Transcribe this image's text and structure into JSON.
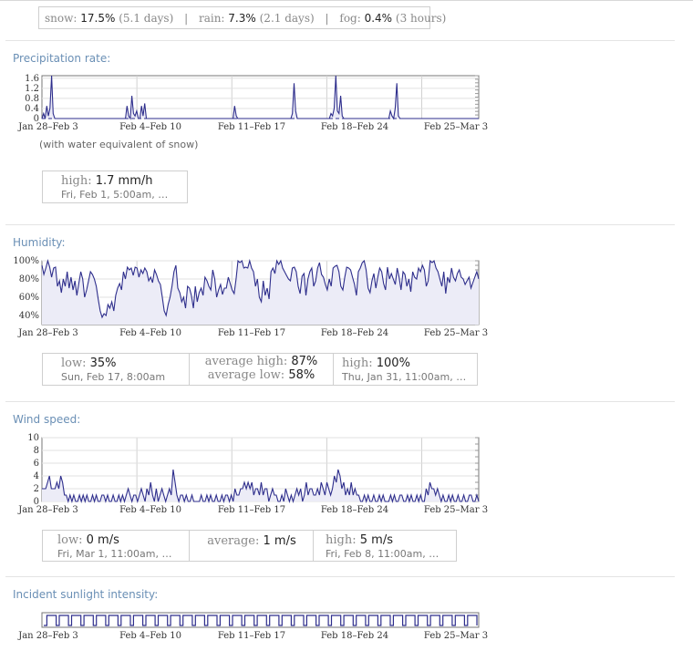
{
  "summary": {
    "snow_label": "snow:",
    "snow_pct": "17.5%",
    "snow_days": "(5.1 days)",
    "rain_label": "rain:",
    "rain_pct": "7.3%",
    "rain_days": "(2.1 days)",
    "fog_label": "fog:",
    "fog_pct": "0.4%",
    "fog_hours": "(3 hours)",
    "divider": "|"
  },
  "sections": {
    "precip_title": "Precipitation rate:",
    "precip_note": "(with water equivalent of snow)",
    "humidity_title": "Humidity:",
    "wind_title": "Wind speed:",
    "sun_title": "Incident sunlight intensity:"
  },
  "precip_stats": {
    "high_label": "high:",
    "high_value": "1.7 mm/h",
    "high_when": "Fri, Feb 1, 5:00am, …"
  },
  "humidity_stats": {
    "low_label": "low:",
    "low_value": "35%",
    "low_when": "Sun, Feb 17, 8:00am",
    "avg_high_label": "average high:",
    "avg_high_value": "87%",
    "avg_low_label": "average low:",
    "avg_low_value": "58%",
    "high_label": "high:",
    "high_value": "100%",
    "high_when": "Thu, Jan 31, 11:00am, …"
  },
  "wind_stats": {
    "low_label": "low:",
    "low_value": "0 m/s",
    "low_when": "Fri, Mar 1, 11:00am, …",
    "avg_label": "average:",
    "avg_value": "1 m/s",
    "high_label": "high:",
    "high_value": "5 m/s",
    "high_when": "Fri, Feb 8, 11:00am, …"
  },
  "colors": {
    "line": "#2e2e8c",
    "fill": "#ececf7",
    "grid": "#d0d0d0",
    "title": "#6a8fb5"
  },
  "chart_data": [
    {
      "type": "line",
      "title": "Precipitation rate:",
      "ylabel": "",
      "x_week_labels": [
        "Jan 28–Feb 3",
        "Feb 4–Feb 10",
        "Feb 11–Feb 17",
        "Feb 18–Feb 24",
        "Feb 25–Mar 3"
      ],
      "ylim": [
        0,
        1.7
      ],
      "yticks": [
        "0",
        "0.4",
        "0.8",
        "1.2",
        "1.6"
      ],
      "series": [
        {
          "values": [
            0,
            0.2,
            0,
            0.5,
            0.1,
            0.4,
            1.7,
            0.2,
            0,
            0,
            0,
            0,
            0,
            0,
            0,
            0,
            0,
            0,
            0,
            0,
            0,
            0,
            0,
            0,
            0,
            0,
            0,
            0,
            0,
            0,
            0,
            0,
            0,
            0,
            0,
            0,
            0,
            0,
            0,
            0,
            0,
            0,
            0,
            0,
            0,
            0,
            0,
            0,
            0,
            0,
            0,
            0,
            0,
            0.5,
            0.1,
            0,
            0.9,
            0.2,
            0.1,
            0.3,
            0,
            0,
            0.5,
            0.1,
            0.6,
            0,
            0,
            0,
            0,
            0,
            0,
            0,
            0,
            0,
            0,
            0,
            0,
            0,
            0,
            0,
            0,
            0,
            0,
            0,
            0,
            0,
            0,
            0,
            0,
            0,
            0,
            0,
            0,
            0,
            0,
            0,
            0,
            0,
            0,
            0,
            0,
            0,
            0,
            0,
            0,
            0,
            0,
            0,
            0,
            0,
            0,
            0,
            0,
            0,
            0,
            0,
            0,
            0,
            0,
            0,
            0.5,
            0.1,
            0,
            0,
            0,
            0,
            0,
            0,
            0,
            0,
            0,
            0,
            0,
            0,
            0,
            0,
            0,
            0,
            0,
            0,
            0,
            0,
            0,
            0,
            0,
            0,
            0,
            0,
            0,
            0,
            0,
            0,
            0,
            0,
            0,
            0,
            0.2,
            1.4,
            0.3,
            0,
            0,
            0,
            0,
            0,
            0,
            0,
            0,
            0,
            0,
            0,
            0,
            0,
            0,
            0,
            0,
            0,
            0,
            0,
            0,
            0,
            0.2,
            0.1,
            0.4,
            1.7,
            0.3,
            0.2,
            0.9,
            0.1,
            0,
            0,
            0,
            0,
            0,
            0,
            0,
            0,
            0,
            0,
            0,
            0,
            0,
            0,
            0,
            0,
            0,
            0,
            0,
            0,
            0,
            0,
            0,
            0,
            0,
            0,
            0,
            0,
            0,
            0.3,
            0.1,
            0,
            0.4,
            1.4,
            0.1,
            0,
            0,
            0,
            0,
            0,
            0,
            0,
            0,
            0,
            0,
            0,
            0,
            0,
            0,
            0,
            0,
            0,
            0,
            0,
            0,
            0,
            0,
            0,
            0,
            0,
            0,
            0,
            0,
            0,
            0,
            0,
            0,
            0,
            0,
            0,
            0,
            0,
            0,
            0,
            0,
            0,
            0,
            0,
            0,
            0,
            0,
            0,
            0,
            0,
            0
          ]
        }
      ]
    },
    {
      "type": "line",
      "title": "Humidity:",
      "ylabel": "",
      "x_week_labels": [
        "Jan 28–Feb 3",
        "Feb 4–Feb 10",
        "Feb 11–Feb 17",
        "Feb 18–Feb 24",
        "Feb 25–Mar 3"
      ],
      "ylim": [
        30,
        100
      ],
      "yticks": [
        "40%",
        "60%",
        "80%",
        "100%"
      ],
      "series": [
        {
          "values": [
            95,
            85,
            92,
            100,
            93,
            82,
            92,
            93,
            72,
            78,
            65,
            80,
            72,
            88,
            70,
            82,
            68,
            78,
            62,
            75,
            88,
            80,
            60,
            68,
            78,
            88,
            85,
            80,
            72,
            58,
            45,
            38,
            42,
            40,
            52,
            48,
            55,
            45,
            62,
            70,
            75,
            68,
            88,
            80,
            93,
            90,
            92,
            84,
            93,
            92,
            82,
            90,
            86,
            92,
            88,
            78,
            82,
            76,
            90,
            85,
            78,
            74,
            60,
            45,
            40,
            52,
            60,
            72,
            88,
            95,
            70,
            65,
            55,
            60,
            48,
            72,
            70,
            62,
            48,
            72,
            55,
            65,
            70,
            62,
            82,
            78,
            72,
            68,
            90,
            80,
            60,
            68,
            74,
            63,
            70,
            70,
            82,
            75,
            68,
            64,
            80,
            100,
            98,
            100,
            92,
            93,
            92,
            100,
            92,
            88,
            72,
            80,
            60,
            55,
            78,
            62,
            70,
            58,
            88,
            92,
            86,
            100,
            96,
            100,
            92,
            88,
            84,
            80,
            78,
            92,
            93,
            88,
            72,
            64,
            83,
            86,
            62,
            80,
            88,
            92,
            72,
            78,
            92,
            98,
            85,
            82,
            74,
            68,
            80,
            72,
            92,
            94,
            95,
            88,
            72,
            68,
            82,
            93,
            92,
            90,
            82,
            74,
            62,
            88,
            92,
            98,
            100,
            90,
            70,
            65,
            78,
            86,
            70,
            82,
            92,
            88,
            75,
            68,
            93,
            80,
            86,
            80,
            74,
            92,
            82,
            68,
            88,
            85,
            72,
            80,
            66,
            88,
            82,
            80,
            92,
            88,
            95,
            90,
            72,
            78,
            100,
            98,
            100,
            92,
            88,
            80,
            72,
            88,
            64,
            82,
            76,
            92,
            82,
            78,
            86,
            90,
            82,
            80,
            74,
            78,
            82,
            70,
            76,
            82,
            88,
            80
          ]
        }
      ]
    },
    {
      "type": "line",
      "title": "Wind speed:",
      "ylabel": "",
      "x_week_labels": [
        "Jan 28–Feb 3",
        "Feb 4–Feb 10",
        "Feb 11–Feb 17",
        "Feb 18–Feb 24",
        "Feb 25–Mar 3"
      ],
      "ylim": [
        0,
        10
      ],
      "yticks": [
        "0",
        "2",
        "4",
        "6",
        "8",
        "10"
      ],
      "series": [
        {
          "values": [
            2,
            2,
            2,
            3,
            4,
            2,
            2,
            2,
            3,
            2,
            4,
            3,
            1,
            1,
            0,
            1,
            0,
            1,
            0,
            0,
            1,
            0,
            1,
            0,
            1,
            0,
            0,
            1,
            0,
            1,
            0,
            0,
            1,
            1,
            0,
            1,
            0,
            0,
            1,
            0,
            0,
            1,
            0,
            1,
            0,
            1,
            2,
            1,
            0,
            1,
            1,
            0,
            1,
            2,
            1,
            0,
            2,
            1,
            3,
            1,
            0,
            2,
            0,
            1,
            2,
            1,
            0,
            1,
            2,
            1,
            5,
            3,
            1,
            0,
            1,
            1,
            0,
            1,
            0,
            0,
            1,
            0,
            0,
            0,
            0,
            1,
            0,
            0,
            1,
            0,
            1,
            0,
            0,
            1,
            0,
            0,
            1,
            0,
            1,
            1,
            0,
            1,
            0,
            2,
            1,
            1,
            2,
            2,
            3,
            2,
            3,
            2,
            3,
            1,
            2,
            2,
            1,
            3,
            1,
            2,
            2,
            0,
            1,
            2,
            1,
            1,
            0,
            0,
            1,
            0,
            2,
            1,
            0,
            1,
            0,
            1,
            2,
            1,
            2,
            0,
            1,
            3,
            1,
            2,
            2,
            1,
            1,
            2,
            1,
            3,
            2,
            1,
            3,
            2,
            1,
            2,
            4,
            3,
            5,
            4,
            2,
            3,
            1,
            2,
            1,
            3,
            1,
            2,
            1,
            1,
            0,
            0,
            1,
            0,
            1,
            0,
            0,
            1,
            0,
            0,
            1,
            0,
            1,
            0,
            0,
            0,
            1,
            0,
            1,
            0,
            0,
            1,
            1,
            0,
            0,
            1,
            0,
            1,
            0,
            0,
            1,
            0,
            1,
            0,
            0,
            2,
            1,
            3,
            2,
            2,
            1,
            2,
            1,
            0,
            1,
            0,
            0,
            1,
            0,
            1,
            0,
            0,
            1,
            0,
            0,
            1,
            0,
            0,
            1,
            1,
            0,
            0,
            1,
            0
          ]
        }
      ]
    },
    {
      "type": "line",
      "title": "Incident sunlight intensity:",
      "ylabel": "",
      "x_week_labels": [
        "Jan 28–Feb 3",
        "Feb 4–Feb 10",
        "Feb 11–Feb 17",
        "Feb 18–Feb 24",
        "Feb 25–Mar 3"
      ],
      "days": 35,
      "series": [
        {
          "values": [
            0,
            1,
            1,
            1,
            0,
            1,
            1,
            1,
            0,
            1,
            1,
            1,
            0,
            1,
            1,
            1,
            0,
            1,
            1,
            1,
            0,
            1,
            1,
            1,
            0,
            1,
            1,
            1,
            0,
            1,
            1,
            1,
            0,
            1,
            1,
            1,
            0,
            1,
            1,
            1,
            0,
            1,
            1,
            1,
            0,
            1,
            1,
            1,
            0,
            1,
            1,
            1,
            0,
            1,
            1,
            1,
            0,
            1,
            1,
            1,
            0,
            1,
            1,
            1,
            0,
            1,
            1,
            1,
            0,
            1,
            1,
            1,
            0,
            1,
            1,
            1,
            0,
            1,
            1,
            1,
            0,
            1,
            1,
            1,
            0,
            1,
            1,
            1,
            0,
            1,
            1,
            1,
            0,
            1,
            1,
            1,
            0,
            1,
            1,
            1,
            0,
            1,
            1,
            1,
            0,
            1,
            1,
            1,
            0,
            1,
            1,
            1,
            0,
            1,
            1,
            1,
            0,
            1,
            1,
            1,
            0,
            1,
            1,
            1,
            0,
            1,
            1,
            1,
            0,
            1,
            1,
            1,
            0,
            1,
            1,
            1,
            0,
            1,
            1,
            1,
            0
          ]
        }
      ]
    }
  ]
}
